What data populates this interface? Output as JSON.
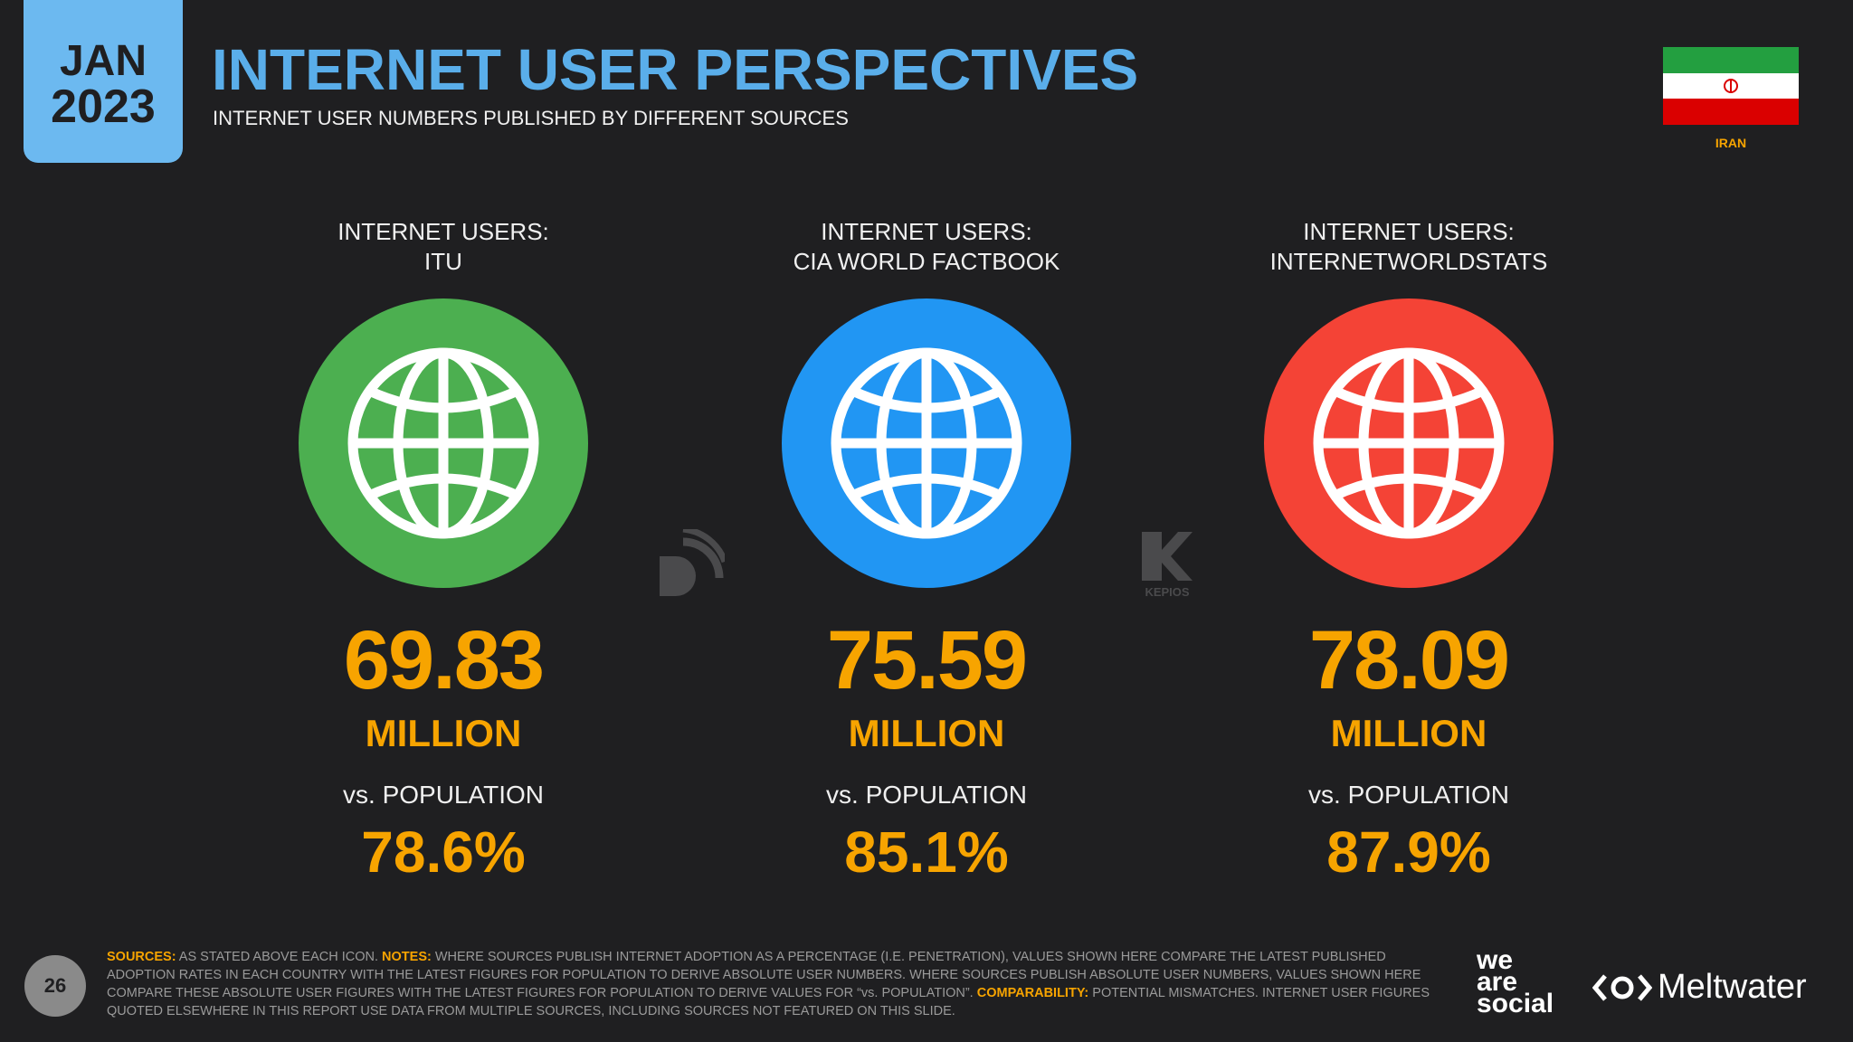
{
  "header": {
    "badge_month": "JAN",
    "badge_year": "2023",
    "title": "INTERNET USER PERSPECTIVES",
    "subtitle": "INTERNET USER NUMBERS PUBLISHED BY DIFFERENT SOURCES",
    "country": "IRAN"
  },
  "colors": {
    "accent": "#f7a400",
    "title": "#5aaeea",
    "green": "#4caf50",
    "blue": "#2196f3",
    "red": "#f44336"
  },
  "sources": [
    {
      "label_1": "INTERNET USERS:",
      "label_2": "ITU",
      "value": "69.83",
      "unit": "MILLION",
      "vs_label": "vs. POPULATION",
      "pct": "78.6%",
      "icon": "globe-icon",
      "color": "#4caf50"
    },
    {
      "label_1": "INTERNET USERS:",
      "label_2": "CIA WORLD FACTBOOK",
      "value": "75.59",
      "unit": "MILLION",
      "vs_label": "vs. POPULATION",
      "pct": "85.1%",
      "icon": "globe-icon",
      "color": "#2196f3"
    },
    {
      "label_1": "INTERNET USERS:",
      "label_2": "INTERNETWORLDSTATS",
      "value": "78.09",
      "unit": "MILLION",
      "vs_label": "vs. POPULATION",
      "pct": "87.9%",
      "icon": "globe-icon",
      "color": "#f44336"
    }
  ],
  "watermarks": {
    "kepios": "KEPIOS"
  },
  "footer": {
    "sources_label": "SOURCES:",
    "sources_text": " AS STATED ABOVE EACH ICON. ",
    "notes_label": "NOTES:",
    "notes_text": " WHERE SOURCES PUBLISH INTERNET ADOPTION AS A PERCENTAGE (I.E. PENETRATION), VALUES SHOWN HERE COMPARE THE LATEST PUBLISHED ADOPTION RATES IN EACH COUNTRY WITH THE LATEST FIGURES FOR POPULATION TO DERIVE ABSOLUTE USER NUMBERS. WHERE SOURCES PUBLISH ABSOLUTE USER NUMBERS, VALUES SHOWN HERE COMPARE THESE ABSOLUTE USER FIGURES WITH THE LATEST FIGURES FOR POPULATION TO DERIVE VALUES FOR “vs. POPULATION”. ",
    "comparability_label": "COMPARABILITY:",
    "comparability_text": " POTENTIAL MISMATCHES. INTERNET USER FIGURES QUOTED ELSEWHERE IN THIS REPORT USE DATA FROM MULTIPLE SOURCES, INCLUDING SOURCES NOT FEATURED ON THIS SLIDE.",
    "page_number": "26"
  },
  "brands": {
    "was_1": "we",
    "was_2": "are",
    "was_3": "social",
    "meltwater": "Meltwater"
  }
}
